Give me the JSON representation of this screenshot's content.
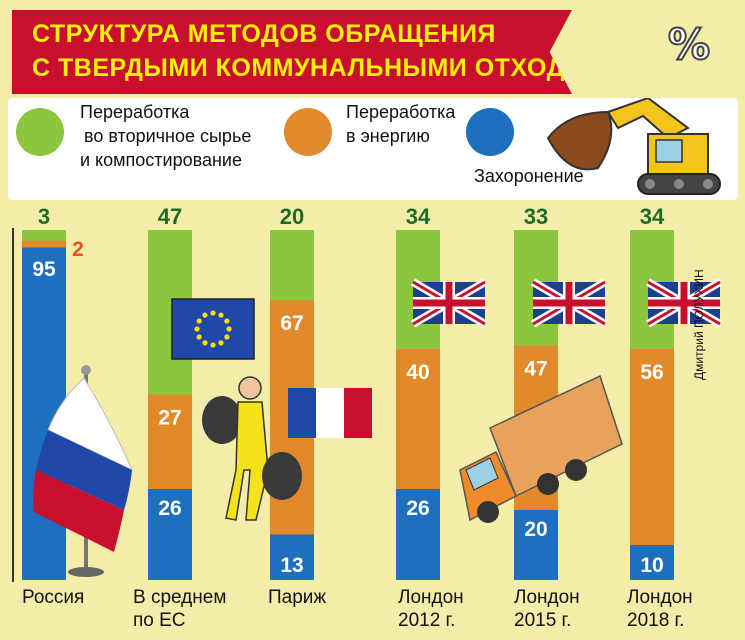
{
  "title": {
    "line1": "СТРУКТУРА МЕТОДОВ ОБРАЩЕНИЯ",
    "line2": "С ТВЕРДЫМИ КОММУНАЛЬНЫМИ ОТХОДАМИ"
  },
  "percent_sign": "%",
  "legend": {
    "recycling": {
      "lines": [
        "Переработка",
        "во вторичное сырье",
        "и компостирование"
      ],
      "color": "#8cc63f"
    },
    "energy": {
      "lines": [
        "Переработка",
        "в энергию"
      ],
      "color": "#e08a2c"
    },
    "landfill": {
      "lines": [
        "Захоронение"
      ],
      "color": "#1f6fbf"
    }
  },
  "credit": "Дмитрий ПОЛУХИН",
  "colors": {
    "landfill_label": "#ffffff",
    "top_label": "#1f6b2a",
    "russia_energy_label": "#e8531c"
  },
  "chart_data": {
    "type": "bar",
    "stacked": true,
    "categories": [
      {
        "lines": [
          "Россия"
        ]
      },
      {
        "lines": [
          "В среднем",
          "по ЕС"
        ]
      },
      {
        "lines": [
          "Париж"
        ]
      },
      {
        "lines": [
          "Лондон",
          "2012 г."
        ]
      },
      {
        "lines": [
          "Лондон",
          "2015 г."
        ]
      },
      {
        "lines": [
          "Лондон",
          "2018 г."
        ]
      }
    ],
    "series": [
      {
        "key": "landfill",
        "values": [
          95,
          26,
          13,
          26,
          20,
          10
        ]
      },
      {
        "key": "energy",
        "values": [
          2,
          27,
          67,
          40,
          47,
          56
        ]
      },
      {
        "key": "recycling",
        "values": [
          3,
          47,
          20,
          34,
          33,
          34
        ]
      }
    ],
    "ylim": [
      0,
      100
    ],
    "flags": [
      "russia",
      "eu",
      "france",
      "uk",
      "uk",
      "uk"
    ]
  }
}
